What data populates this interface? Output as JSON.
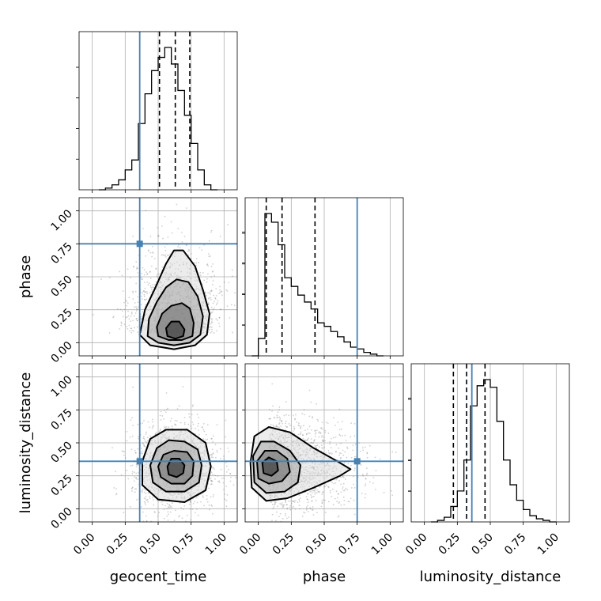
{
  "chart_data": {
    "type": "corner",
    "parameters": [
      "geocent_time",
      "phase",
      "luminosity_distance"
    ],
    "axis_range": [
      -0.1,
      1.1
    ],
    "ticks": [
      0.0,
      0.25,
      0.5,
      0.75,
      1.0
    ],
    "tick_labels": [
      "0.00",
      "0.25",
      "0.50",
      "0.75",
      "1.00"
    ],
    "grid": true,
    "truths": {
      "geocent_time": 0.36,
      "phase": 0.75,
      "luminosity_distance": 0.36
    },
    "quantiles": {
      "geocent_time": [
        0.51,
        0.63,
        0.74
      ],
      "phase": [
        0.06,
        0.18,
        0.43
      ],
      "luminosity_distance": [
        0.22,
        0.32,
        0.46
      ]
    },
    "histograms": {
      "geocent_time": {
        "bin_start": 0.05,
        "bin_width": 0.05,
        "counts": [
          0,
          1,
          3,
          6,
          12,
          18,
          40,
          58,
          72,
          80,
          86,
          76,
          60,
          45,
          28,
          12,
          3,
          0
        ]
      },
      "phase": {
        "bin_start": -0.05,
        "bin_width": 0.05,
        "counts": [
          0,
          10,
          82,
          77,
          64,
          45,
          40,
          35,
          31,
          27,
          19,
          17,
          14,
          11,
          8,
          5,
          4,
          2,
          1,
          0
        ]
      },
      "luminosity_distance": {
        "bin_start": 0.05,
        "bin_width": 0.05,
        "counts": [
          0,
          1,
          3,
          10,
          20,
          40,
          75,
          88,
          92,
          87,
          65,
          40,
          24,
          14,
          8,
          4,
          2,
          1,
          0
        ]
      }
    },
    "pairs": [
      {
        "x": "geocent_time",
        "y": "phase",
        "center": [
          0.63,
          0.1
        ],
        "contours": [
          [
            [
              0.57,
              0.05
            ],
            [
              0.63,
              0.03
            ],
            [
              0.69,
              0.05
            ],
            [
              0.7,
              0.1
            ],
            [
              0.66,
              0.16
            ],
            [
              0.6,
              0.16
            ],
            [
              0.56,
              0.11
            ]
          ],
          [
            [
              0.5,
              0.05
            ],
            [
              0.58,
              0.02
            ],
            [
              0.68,
              0.02
            ],
            [
              0.76,
              0.05
            ],
            [
              0.77,
              0.15
            ],
            [
              0.74,
              0.26
            ],
            [
              0.68,
              0.3
            ],
            [
              0.6,
              0.28
            ],
            [
              0.53,
              0.22
            ],
            [
              0.49,
              0.12
            ]
          ],
          [
            [
              0.42,
              0.05
            ],
            [
              0.5,
              0.0
            ],
            [
              0.62,
              -0.02
            ],
            [
              0.74,
              0.0
            ],
            [
              0.82,
              0.06
            ],
            [
              0.84,
              0.2
            ],
            [
              0.8,
              0.35
            ],
            [
              0.73,
              0.46
            ],
            [
              0.64,
              0.48
            ],
            [
              0.56,
              0.42
            ],
            [
              0.49,
              0.31
            ],
            [
              0.43,
              0.18
            ]
          ],
          [
            [
              0.36,
              0.06
            ],
            [
              0.44,
              -0.02
            ],
            [
              0.62,
              -0.05
            ],
            [
              0.78,
              -0.02
            ],
            [
              0.87,
              0.06
            ],
            [
              0.89,
              0.22
            ],
            [
              0.84,
              0.4
            ],
            [
              0.78,
              0.58
            ],
            [
              0.69,
              0.7
            ],
            [
              0.62,
              0.7
            ],
            [
              0.56,
              0.6
            ],
            [
              0.48,
              0.42
            ],
            [
              0.4,
              0.25
            ]
          ]
        ]
      },
      {
        "x": "geocent_time",
        "y": "luminosity_distance",
        "center": [
          0.63,
          0.31
        ],
        "contours": [
          [
            [
              0.58,
              0.26
            ],
            [
              0.64,
              0.24
            ],
            [
              0.69,
              0.27
            ],
            [
              0.7,
              0.33
            ],
            [
              0.66,
              0.38
            ],
            [
              0.6,
              0.38
            ],
            [
              0.57,
              0.32
            ]
          ],
          [
            [
              0.52,
              0.24
            ],
            [
              0.6,
              0.19
            ],
            [
              0.7,
              0.19
            ],
            [
              0.76,
              0.25
            ],
            [
              0.77,
              0.36
            ],
            [
              0.72,
              0.43
            ],
            [
              0.62,
              0.44
            ],
            [
              0.54,
              0.41
            ],
            [
              0.5,
              0.32
            ]
          ],
          [
            [
              0.46,
              0.2
            ],
            [
              0.56,
              0.13
            ],
            [
              0.7,
              0.13
            ],
            [
              0.81,
              0.2
            ],
            [
              0.83,
              0.33
            ],
            [
              0.8,
              0.45
            ],
            [
              0.7,
              0.51
            ],
            [
              0.58,
              0.52
            ],
            [
              0.49,
              0.46
            ],
            [
              0.44,
              0.33
            ]
          ],
          [
            [
              0.38,
              0.18
            ],
            [
              0.5,
              0.07
            ],
            [
              0.7,
              0.05
            ],
            [
              0.86,
              0.14
            ],
            [
              0.9,
              0.32
            ],
            [
              0.86,
              0.5
            ],
            [
              0.72,
              0.6
            ],
            [
              0.56,
              0.6
            ],
            [
              0.44,
              0.53
            ],
            [
              0.38,
              0.36
            ]
          ]
        ]
      },
      {
        "x": "phase",
        "y": "luminosity_distance",
        "center": [
          0.08,
          0.32
        ],
        "contours": [
          [
            [
              0.04,
              0.27
            ],
            [
              0.1,
              0.25
            ],
            [
              0.15,
              0.29
            ],
            [
              0.14,
              0.36
            ],
            [
              0.08,
              0.39
            ],
            [
              0.03,
              0.35
            ]
          ],
          [
            [
              0.0,
              0.23
            ],
            [
              0.08,
              0.19
            ],
            [
              0.18,
              0.21
            ],
            [
              0.24,
              0.28
            ],
            [
              0.22,
              0.38
            ],
            [
              0.14,
              0.44
            ],
            [
              0.05,
              0.44
            ],
            [
              -0.01,
              0.36
            ]
          ],
          [
            [
              -0.03,
              0.2
            ],
            [
              0.06,
              0.12
            ],
            [
              0.2,
              0.13
            ],
            [
              0.3,
              0.2
            ],
            [
              0.32,
              0.33
            ],
            [
              0.24,
              0.44
            ],
            [
              0.12,
              0.51
            ],
            [
              0.02,
              0.51
            ],
            [
              -0.04,
              0.4
            ]
          ],
          [
            [
              -0.05,
              0.16
            ],
            [
              0.06,
              0.06
            ],
            [
              0.22,
              0.08
            ],
            [
              0.42,
              0.16
            ],
            [
              0.62,
              0.25
            ],
            [
              0.7,
              0.3
            ],
            [
              0.6,
              0.36
            ],
            [
              0.42,
              0.46
            ],
            [
              0.24,
              0.58
            ],
            [
              0.08,
              0.62
            ],
            [
              -0.03,
              0.55
            ],
            [
              -0.06,
              0.35
            ]
          ]
        ]
      }
    ]
  }
}
